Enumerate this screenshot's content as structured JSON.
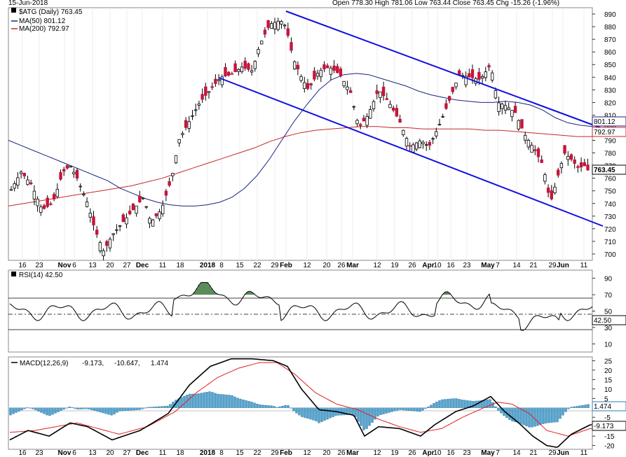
{
  "header": {
    "date": "15-Jun-2018",
    "ohlc": "Open 778.30  High 781.06  Low 763.44  Close 763.45  Chg -15.26 (-1.96%)",
    "open_arrow": "▼"
  },
  "legend": {
    "price": "$ATG (Daily) 763.45",
    "ma50": "MA(50) 801.12",
    "ma200": "MA(200) 792.97",
    "rsi": "RSI(14) 42.50",
    "macd_label": "MACD(12,26,9)",
    "macd_v1": "-9.173,",
    "macd_v2": "-10.647,",
    "macd_v3": "1.474"
  },
  "colors": {
    "up": "#ffffff",
    "down": "#c8143c",
    "ma50": "#1a237e",
    "ma200": "#c62828",
    "channel": "#1010e0",
    "rsi_fill": "#5b8a5b",
    "hist": "#4fa3d1",
    "signal": "#e02020"
  },
  "chart_data": [
    {
      "type": "candlestick",
      "title": "$ATG (Daily) 763.45",
      "ylim": [
        695,
        895
      ],
      "y_ticks": [
        700,
        710,
        720,
        730,
        740,
        750,
        760,
        770,
        780,
        790,
        800,
        810,
        820,
        830,
        840,
        850,
        860,
        870,
        880,
        890
      ],
      "x_ticks": [
        "16",
        "23",
        "Nov",
        "6",
        "13",
        "20",
        "27",
        "Dec",
        "11",
        "18",
        "2018",
        "8",
        "15",
        "22",
        "29",
        "Feb",
        "12",
        "20",
        "26",
        "Mar",
        "12",
        "19",
        "26",
        "Apr",
        "10",
        "16",
        "23",
        "May",
        "7",
        "14",
        "21",
        "29",
        "Jun",
        "11"
      ],
      "last_close": "763.45",
      "ma50_last": "801.12",
      "ma200_last": "792.97",
      "series": [
        {
          "name": "MA(50)",
          "values": [
            790,
            786,
            782,
            778,
            774,
            770,
            766,
            762,
            758,
            752,
            748,
            744,
            741,
            739,
            738,
            738,
            739,
            741,
            745,
            752,
            762,
            775,
            790,
            805,
            818,
            830,
            838,
            842,
            843,
            842,
            839,
            836,
            833,
            829,
            826,
            824,
            822,
            821,
            820,
            820,
            821,
            820,
            818,
            814,
            808,
            804,
            802,
            801
          ]
        },
        {
          "name": "MA(200)",
          "values": [
            738,
            740,
            742,
            744,
            746,
            748,
            750,
            752,
            754,
            757,
            760,
            764,
            768,
            772,
            776,
            780,
            784,
            789,
            793,
            796,
            798,
            799,
            800,
            801,
            801,
            800,
            800,
            799,
            799,
            799,
            799,
            798,
            798,
            797,
            796,
            795,
            794,
            793,
            793
          ]
        }
      ]
    },
    {
      "type": "line",
      "title": "RSI(14) 42.50",
      "ylim": [
        0,
        100
      ],
      "y_ticks": [
        10,
        30,
        50,
        70,
        90
      ],
      "last": "42.50"
    },
    {
      "type": "line",
      "title": "MACD(12,26,9)",
      "ylim": [
        -22,
        27
      ],
      "y_ticks": [
        25,
        20,
        15,
        10,
        5,
        -5,
        -10,
        -15,
        -20
      ],
      "macd": "-9.173",
      "signal": "-10.647",
      "histogram": "1.474"
    }
  ]
}
